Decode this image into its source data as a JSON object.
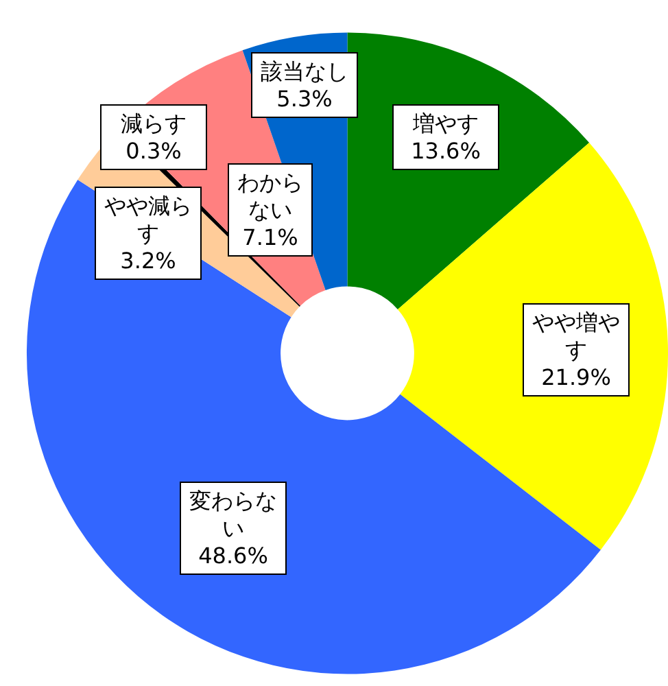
{
  "chart_data": {
    "type": "donut",
    "categories": [
      "増やす",
      "やや増やす",
      "変わらない",
      "やや減らす",
      "減らす",
      "わからない",
      "該当なし"
    ],
    "values": [
      13.6,
      21.9,
      48.6,
      3.2,
      0.3,
      7.1,
      5.3
    ],
    "value_labels": [
      "13.6%",
      "21.9%",
      "48.6%",
      "3.2%",
      "0.3%",
      "7.1%",
      "5.3%"
    ],
    "colors": [
      "#008000",
      "#ffff00",
      "#3366ff",
      "#ffcc99",
      "#000000",
      "#ff8080",
      "#0066cc"
    ],
    "legend": false
  }
}
